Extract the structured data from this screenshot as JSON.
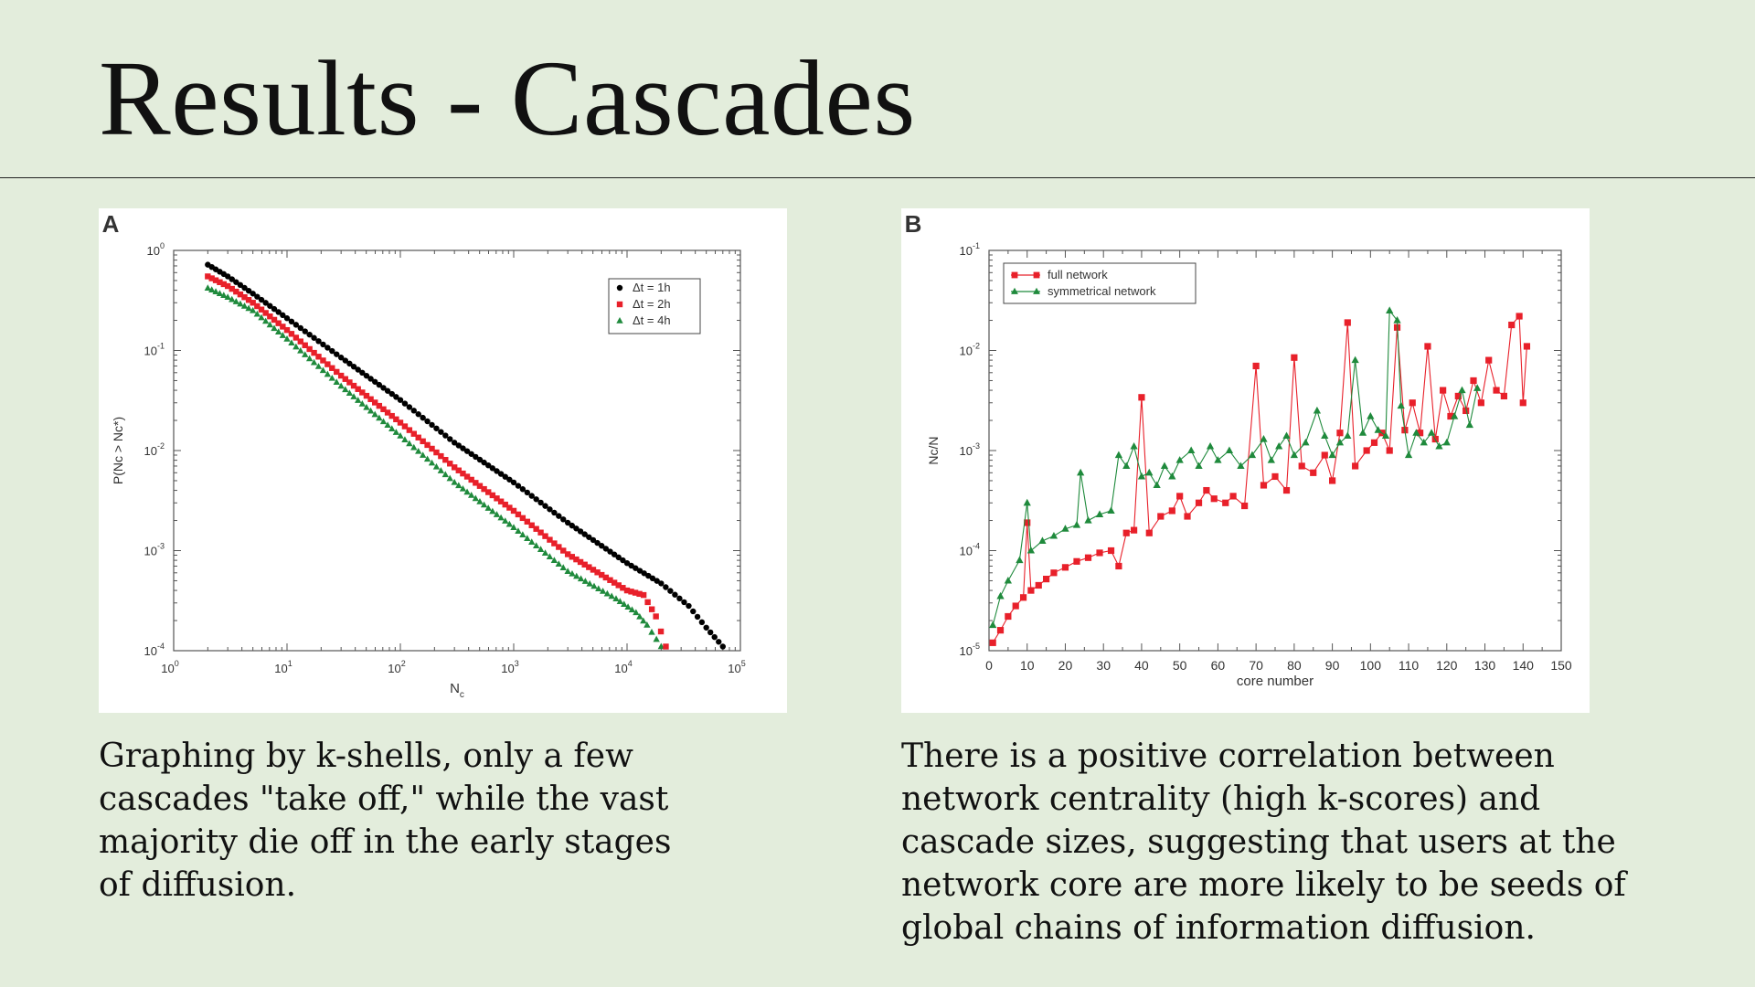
{
  "slide": {
    "title": "Results - Cascades",
    "caption_a_lines": [
      "Graphing by k-shells, only a few",
      "cascades \"take off,\" while the vast",
      "majority die off in the early stages",
      "of diffusion."
    ],
    "caption_b_lines": [
      "There is a positive correlation between",
      "network centrality (high k-scores) and",
      "cascade sizes, suggesting that users at the",
      "network core are more likely to be seeds of",
      "global chains of information diffusion."
    ],
    "colors": {
      "background": "#e3eddc",
      "panel": "#ffffff",
      "black": "#000000",
      "red": "#e8202a",
      "green": "#1f8a3c"
    }
  },
  "chart_data": [
    {
      "panel_label": "A",
      "type": "scatter",
      "xscale": "log",
      "yscale": "log",
      "xlim": [
        1,
        100000
      ],
      "ylim": [
        0.0001,
        1
      ],
      "xlabel": "N_c",
      "ylabel": "P(N_c > N_c*)",
      "xtick_labels": [
        {
          "base": "10",
          "exp": "0"
        },
        {
          "base": "10",
          "exp": "1"
        },
        {
          "base": "10",
          "exp": "2"
        },
        {
          "base": "10",
          "exp": "3"
        },
        {
          "base": "10",
          "exp": "4"
        },
        {
          "base": "10",
          "exp": "5"
        }
      ],
      "ytick_labels": [
        {
          "base": "10",
          "exp": "-4"
        },
        {
          "base": "10",
          "exp": "-3"
        },
        {
          "base": "10",
          "exp": "-2"
        },
        {
          "base": "10",
          "exp": "-1"
        },
        {
          "base": "10",
          "exp": "0"
        }
      ],
      "legend_position": "top-right",
      "series": [
        {
          "name": "Δt = 1h",
          "color": "#000000",
          "marker": "circle",
          "points": [
            [
              2,
              0.72
            ],
            [
              3,
              0.55
            ],
            [
              5,
              0.37
            ],
            [
              10,
              0.21
            ],
            [
              30,
              0.085
            ],
            [
              100,
              0.032
            ],
            [
              300,
              0.012
            ],
            [
              1000,
              0.0048
            ],
            [
              3000,
              0.0019
            ],
            [
              10000,
              0.00075
            ],
            [
              20000,
              0.00047
            ],
            [
              35000,
              0.00028
            ],
            [
              50000,
              0.00017
            ],
            [
              70000,
              0.00011
            ]
          ]
        },
        {
          "name": "Δt = 2h",
          "color": "#e8202a",
          "marker": "square",
          "points": [
            [
              2,
              0.55
            ],
            [
              3,
              0.44
            ],
            [
              5,
              0.3
            ],
            [
              10,
              0.16
            ],
            [
              30,
              0.056
            ],
            [
              100,
              0.019
            ],
            [
              300,
              0.0068
            ],
            [
              1000,
              0.0025
            ],
            [
              3000,
              0.00092
            ],
            [
              10000,
              0.0004
            ],
            [
              14000,
              0.00036
            ],
            [
              18000,
              0.00022
            ],
            [
              22000,
              0.00011
            ]
          ]
        },
        {
          "name": "Δt = 4h",
          "color": "#1f8a3c",
          "marker": "triangle",
          "points": [
            [
              2,
              0.42
            ],
            [
              3,
              0.34
            ],
            [
              5,
              0.25
            ],
            [
              10,
              0.13
            ],
            [
              30,
              0.044
            ],
            [
              100,
              0.014
            ],
            [
              300,
              0.0048
            ],
            [
              1000,
              0.0017
            ],
            [
              3000,
              0.00062
            ],
            [
              8000,
              0.00033
            ],
            [
              12000,
              0.00024
            ],
            [
              15000,
              0.00018
            ],
            [
              20000,
              0.00011
            ]
          ]
        }
      ]
    },
    {
      "panel_label": "B",
      "type": "line",
      "xscale": "linear",
      "yscale": "log",
      "xlim": [
        0,
        150
      ],
      "ylim": [
        1e-05,
        0.1
      ],
      "xlabel": "core number",
      "ylabel": "N_c/N",
      "xtick_labels": [
        "0",
        "10",
        "20",
        "30",
        "40",
        "50",
        "60",
        "70",
        "80",
        "90",
        "100",
        "110",
        "120",
        "130",
        "140",
        "150"
      ],
      "ytick_labels": [
        {
          "base": "10",
          "exp": "-5"
        },
        {
          "base": "10",
          "exp": "-4"
        },
        {
          "base": "10",
          "exp": "-3"
        },
        {
          "base": "10",
          "exp": "-2"
        },
        {
          "base": "10",
          "exp": "-1"
        }
      ],
      "legend_position": "top-left",
      "series": [
        {
          "name": "full network",
          "color": "#e8202a",
          "marker": "square",
          "points": [
            [
              1,
              1.2e-05
            ],
            [
              3,
              1.6e-05
            ],
            [
              5,
              2.2e-05
            ],
            [
              7,
              2.8e-05
            ],
            [
              9,
              3.4e-05
            ],
            [
              10,
              0.00019
            ],
            [
              11,
              4e-05
            ],
            [
              13,
              4.5e-05
            ],
            [
              15,
              5.2e-05
            ],
            [
              17,
              6e-05
            ],
            [
              20,
              6.8e-05
            ],
            [
              23,
              7.8e-05
            ],
            [
              26,
              8.5e-05
            ],
            [
              29,
              9.5e-05
            ],
            [
              32,
              0.0001
            ],
            [
              34,
              7e-05
            ],
            [
              36,
              0.00015
            ],
            [
              38,
              0.00016
            ],
            [
              40,
              0.0034
            ],
            [
              42,
              0.00015
            ],
            [
              45,
              0.00022
            ],
            [
              48,
              0.00025
            ],
            [
              50,
              0.00035
            ],
            [
              52,
              0.00022
            ],
            [
              55,
              0.0003
            ],
            [
              57,
              0.0004
            ],
            [
              59,
              0.00033
            ],
            [
              62,
              0.0003
            ],
            [
              64,
              0.00035
            ],
            [
              67,
              0.00028
            ],
            [
              70,
              0.007
            ],
            [
              72,
              0.00045
            ],
            [
              75,
              0.00055
            ],
            [
              78,
              0.0004
            ],
            [
              80,
              0.0085
            ],
            [
              82,
              0.0007
            ],
            [
              85,
              0.0006
            ],
            [
              88,
              0.0009
            ],
            [
              90,
              0.0005
            ],
            [
              92,
              0.0015
            ],
            [
              94,
              0.019
            ],
            [
              96,
              0.0007
            ],
            [
              99,
              0.001
            ],
            [
              101,
              0.0012
            ],
            [
              103,
              0.0015
            ],
            [
              105,
              0.001
            ],
            [
              107,
              0.017
            ],
            [
              109,
              0.0016
            ],
            [
              111,
              0.003
            ],
            [
              113,
              0.0015
            ],
            [
              115,
              0.011
            ],
            [
              117,
              0.0013
            ],
            [
              119,
              0.004
            ],
            [
              121,
              0.0022
            ],
            [
              123,
              0.0035
            ],
            [
              125,
              0.0025
            ],
            [
              127,
              0.005
            ],
            [
              129,
              0.003
            ],
            [
              131,
              0.008
            ],
            [
              133,
              0.004
            ],
            [
              135,
              0.0035
            ],
            [
              137,
              0.018
            ],
            [
              139,
              0.022
            ],
            [
              140,
              0.003
            ],
            [
              141,
              0.011
            ]
          ]
        },
        {
          "name": "symmetrical network",
          "color": "#1f8a3c",
          "marker": "triangle",
          "points": [
            [
              1,
              1.8e-05
            ],
            [
              3,
              3.5e-05
            ],
            [
              5,
              5e-05
            ],
            [
              8,
              8e-05
            ],
            [
              10,
              0.0003
            ],
            [
              11,
              0.0001
            ],
            [
              14,
              0.000125
            ],
            [
              17,
              0.00014
            ],
            [
              20,
              0.000165
            ],
            [
              23,
              0.00018
            ],
            [
              24,
              0.0006
            ],
            [
              26,
              0.0002
            ],
            [
              29,
              0.00023
            ],
            [
              32,
              0.00025
            ],
            [
              34,
              0.0009
            ],
            [
              36,
              0.0007
            ],
            [
              38,
              0.0011
            ],
            [
              40,
              0.00055
            ],
            [
              42,
              0.0006
            ],
            [
              44,
              0.00045
            ],
            [
              46,
              0.0007
            ],
            [
              48,
              0.00055
            ],
            [
              50,
              0.0008
            ],
            [
              53,
              0.001
            ],
            [
              55,
              0.0007
            ],
            [
              58,
              0.0011
            ],
            [
              60,
              0.0008
            ],
            [
              63,
              0.001
            ],
            [
              66,
              0.0007
            ],
            [
              69,
              0.0009
            ],
            [
              72,
              0.0013
            ],
            [
              74,
              0.0008
            ],
            [
              76,
              0.0011
            ],
            [
              78,
              0.0014
            ],
            [
              80,
              0.0009
            ],
            [
              83,
              0.0012
            ],
            [
              86,
              0.0025
            ],
            [
              88,
              0.0014
            ],
            [
              90,
              0.0009
            ],
            [
              92,
              0.0012
            ],
            [
              94,
              0.0014
            ],
            [
              96,
              0.008
            ],
            [
              98,
              0.0015
            ],
            [
              100,
              0.0022
            ],
            [
              102,
              0.0016
            ],
            [
              104,
              0.0014
            ],
            [
              105,
              0.025
            ],
            [
              107,
              0.02
            ],
            [
              108,
              0.0028
            ],
            [
              110,
              0.0009
            ],
            [
              112,
              0.0015
            ],
            [
              114,
              0.0012
            ],
            [
              116,
              0.0015
            ],
            [
              118,
              0.0011
            ],
            [
              120,
              0.0012
            ],
            [
              122,
              0.0022
            ],
            [
              124,
              0.004
            ],
            [
              126,
              0.0018
            ],
            [
              128,
              0.0042
            ]
          ]
        }
      ]
    }
  ]
}
